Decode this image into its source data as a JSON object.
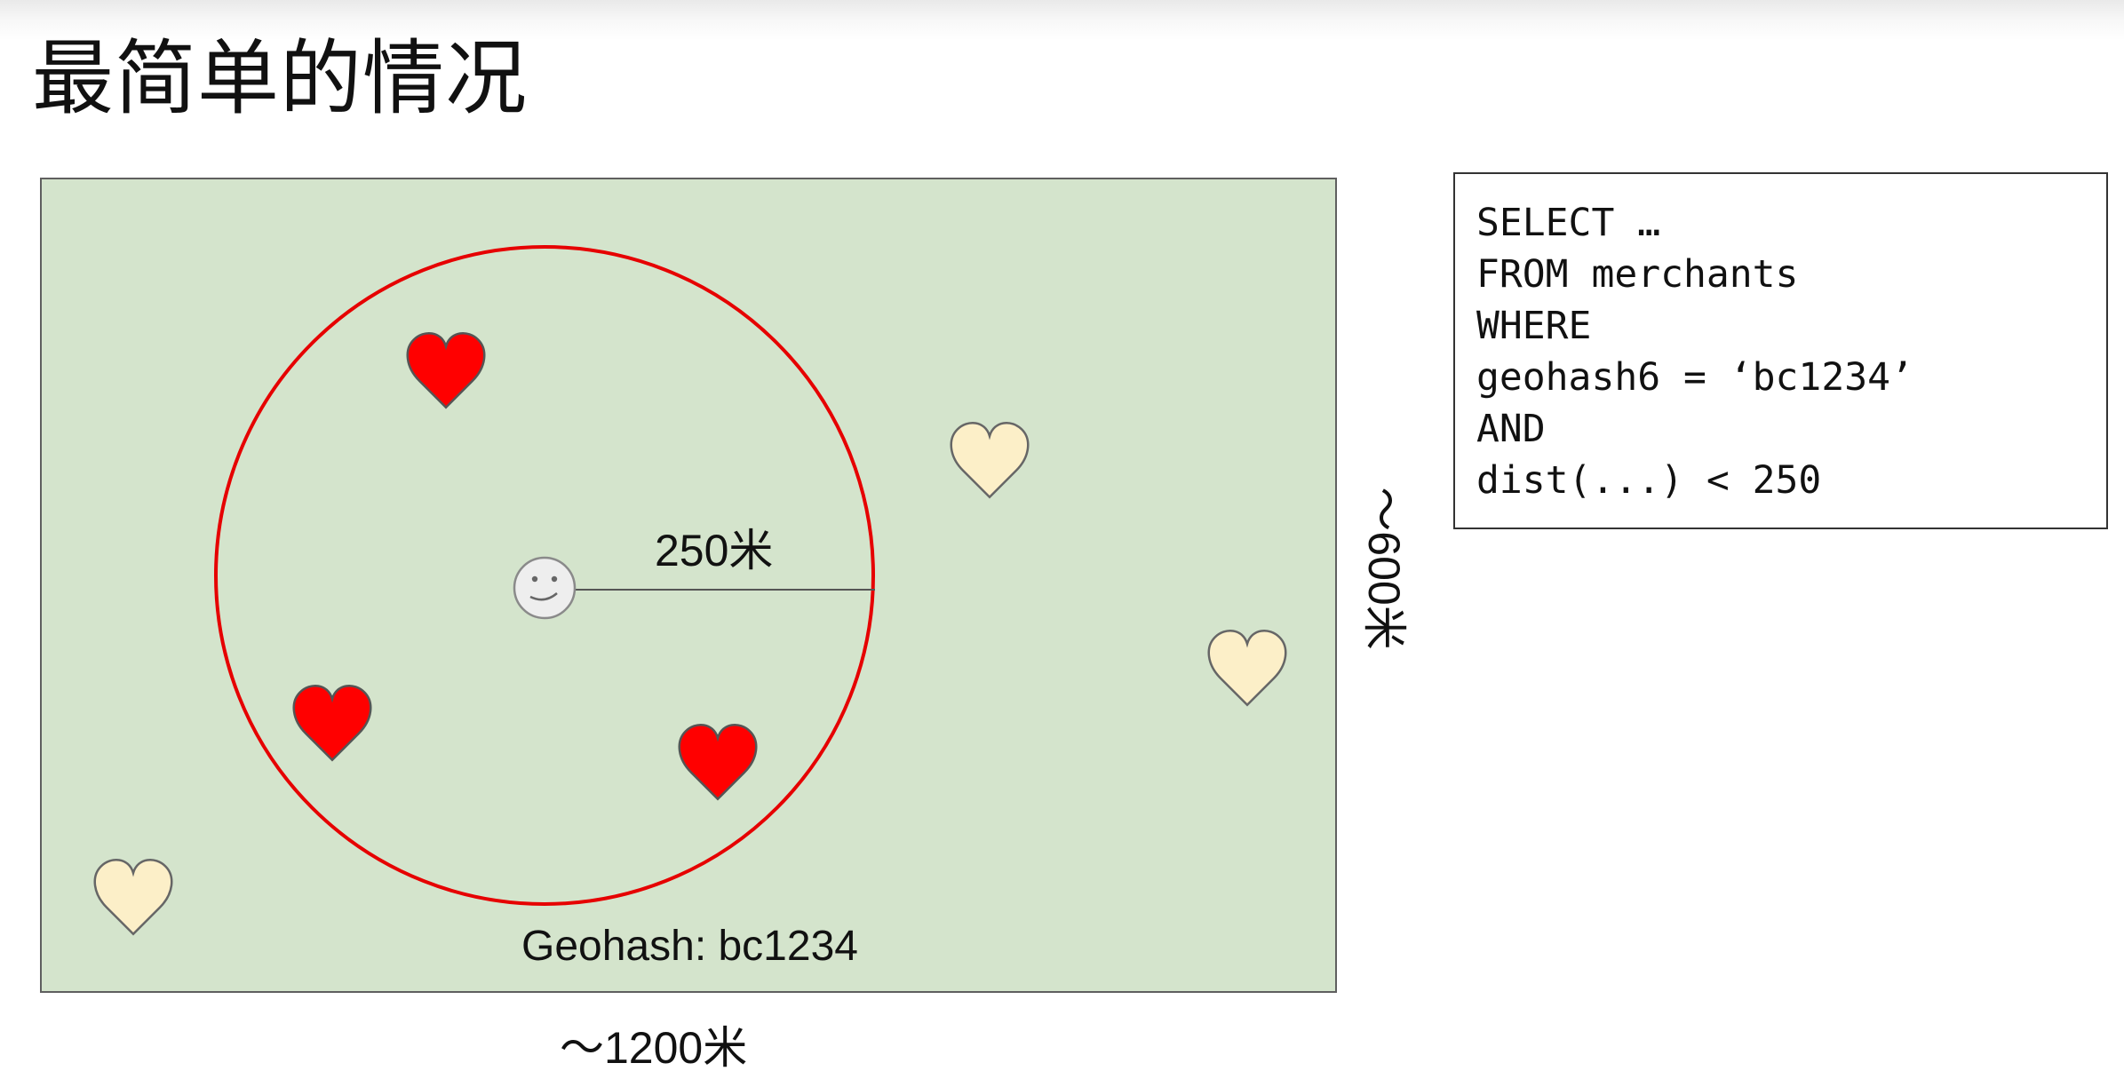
{
  "title": "最简单的情况",
  "map": {
    "radius_label": "250米",
    "geohash_label": "Geohash: bc1234",
    "width_label": "～1200米",
    "height_label": "～600米",
    "colors": {
      "background": "#d4e4cc",
      "circle": "#e60000",
      "heart_inside": "#ff0000",
      "heart_outside": "#fcefc8"
    },
    "icons": [
      "user-smiley-icon",
      "merchant-heart-icon"
    ]
  },
  "sql": {
    "lines": [
      "SELECT …",
      "FROM merchants",
      "WHERE",
      "geohash6 = ‘bc1234’",
      "AND",
      "dist(...) < 250"
    ]
  }
}
